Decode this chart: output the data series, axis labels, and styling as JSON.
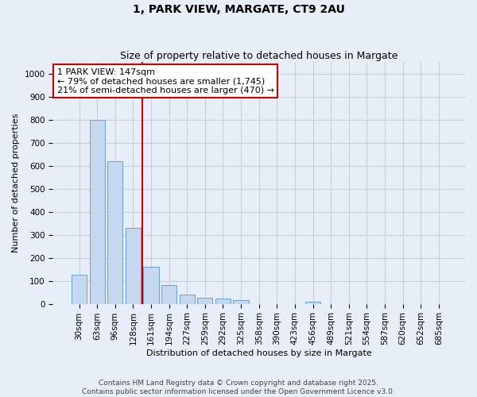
{
  "title": "1, PARK VIEW, MARGATE, CT9 2AU",
  "subtitle": "Size of property relative to detached houses in Margate",
  "xlabel": "Distribution of detached houses by size in Margate",
  "ylabel": "Number of detached properties",
  "footer_line1": "Contains HM Land Registry data © Crown copyright and database right 2025.",
  "footer_line2": "Contains public sector information licensed under the Open Government Licence v3.0.",
  "categories": [
    "30sqm",
    "63sqm",
    "96sqm",
    "128sqm",
    "161sqm",
    "194sqm",
    "227sqm",
    "259sqm",
    "292sqm",
    "325sqm",
    "358sqm",
    "390sqm",
    "423sqm",
    "456sqm",
    "489sqm",
    "521sqm",
    "554sqm",
    "587sqm",
    "620sqm",
    "652sqm",
    "685sqm"
  ],
  "values": [
    125,
    800,
    620,
    330,
    160,
    80,
    40,
    25,
    22,
    15,
    0,
    0,
    0,
    8,
    0,
    0,
    0,
    0,
    0,
    0,
    0
  ],
  "bar_color": "#c5d8ef",
  "bar_edge_color": "#6b9fd4",
  "grid_color": "#c8d0de",
  "background_color": "#e8eef7",
  "vline_x_index": 3.5,
  "vline_color": "#cc0000",
  "annotation_text": "1 PARK VIEW: 147sqm\n← 79% of detached houses are smaller (1,745)\n21% of semi-detached houses are larger (470) →",
  "annotation_box_facecolor": "white",
  "annotation_box_edgecolor": "#cc0000",
  "ylim": [
    0,
    1050
  ],
  "yticks": [
    0,
    100,
    200,
    300,
    400,
    500,
    600,
    700,
    800,
    900,
    1000
  ],
  "title_fontsize": 10,
  "subtitle_fontsize": 9,
  "annotation_fontsize": 8,
  "axis_label_fontsize": 8,
  "tick_fontsize": 7.5,
  "footer_fontsize": 6.5
}
